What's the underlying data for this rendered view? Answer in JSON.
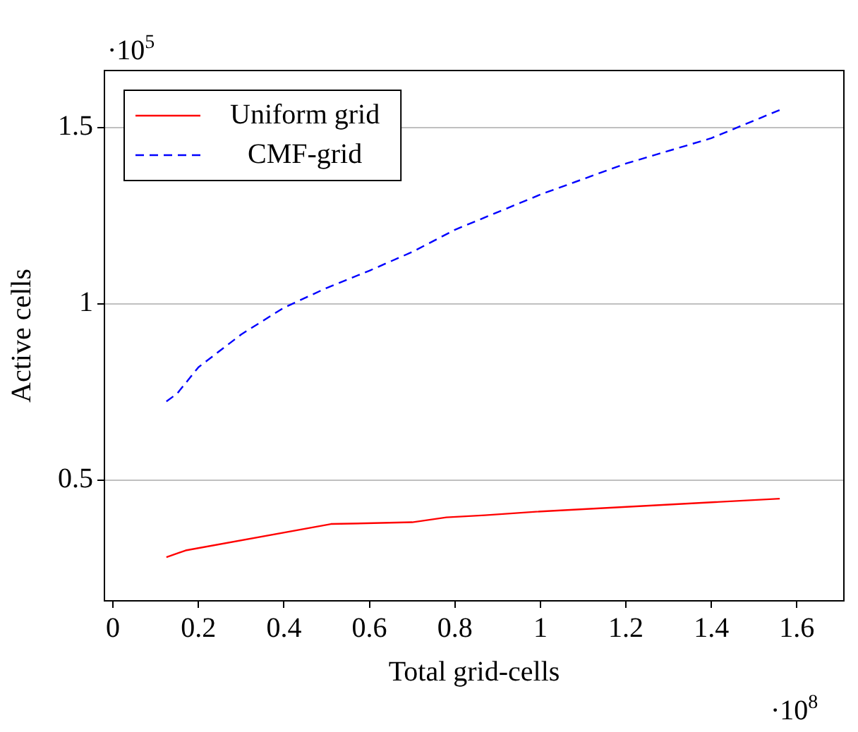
{
  "chart_data": {
    "type": "line",
    "xlabel": "Total grid-cells",
    "ylabel": "Active cells",
    "annotations": [
      "·10$^{5}$",
      "·10$^{8}$"
    ],
    "series": [
      {
        "name": "Uniform grid",
        "color": "#ff0000",
        "line_style": "solid",
        "x": [
          0.125,
          0.17,
          0.51,
          0.7,
          0.78,
          0.87,
          0.99,
          1.56
        ],
        "values": [
          0.281,
          0.3,
          0.375,
          0.38,
          0.394,
          0.4,
          0.41,
          0.447
        ]
      },
      {
        "name": "CMF-grid",
        "color": "#0000ff",
        "line_style": "dashed",
        "x": [
          0.125,
          0.15,
          0.2,
          0.3,
          0.4,
          0.5,
          0.6,
          0.7,
          0.8,
          0.9,
          1.0,
          1.2,
          1.4,
          1.56
        ],
        "values": [
          0.723,
          0.745,
          0.82,
          0.913,
          0.989,
          1.045,
          1.094,
          1.147,
          1.21,
          1.26,
          1.31,
          1.398,
          1.47,
          1.55
        ]
      }
    ],
    "xlim": [
      -0.02,
      1.71
    ],
    "ylim": [
      0.157,
      1.662
    ],
    "xticks": [
      0,
      0.2,
      0.4,
      0.6,
      0.8,
      1,
      1.2,
      1.4,
      1.6
    ],
    "yticks": [
      0.5,
      1,
      1.5
    ],
    "grid": "y",
    "legend": "top left",
    "marker": "none"
  }
}
